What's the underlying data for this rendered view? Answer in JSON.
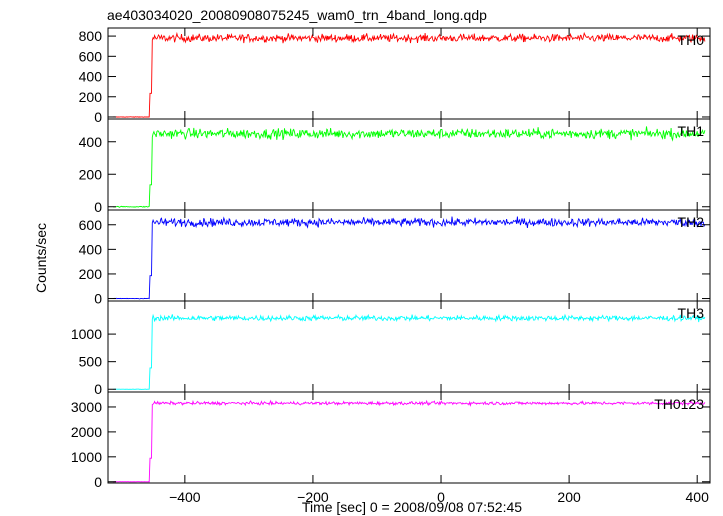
{
  "title": "ae403034020_20080908075245_wam0_trn_4band_long.qdp",
  "chart_data": {
    "type": "line",
    "title": "ae403034020_20080908075245_wam0_trn_4band_long.qdp",
    "xlabel": "Time [sec] 0 = 2008/09/08 07:52:45",
    "ylabel": "Counts/sec",
    "xlim": [
      -520,
      420
    ],
    "xticks": [
      -400,
      -200,
      0,
      200,
      400
    ],
    "xtick_labels": [
      "−400",
      "−200",
      "0",
      "200",
      "400"
    ],
    "step_time": -455,
    "panels": [
      {
        "name": "TH0",
        "color": "#ff0000",
        "ylim": [
          -20,
          880
        ],
        "yticks": [
          0,
          200,
          400,
          600,
          800
        ],
        "pre_level": 0,
        "level": 780,
        "noise": 28
      },
      {
        "name": "TH1",
        "color": "#00ff00",
        "ylim": [
          -20,
          540
        ],
        "yticks": [
          0,
          200,
          400
        ],
        "pre_level": 0,
        "level": 450,
        "noise": 22
      },
      {
        "name": "TH2",
        "color": "#0000ff",
        "ylim": [
          -20,
          720
        ],
        "yticks": [
          0,
          200,
          400,
          600
        ],
        "pre_level": 0,
        "level": 620,
        "noise": 24
      },
      {
        "name": "TH3",
        "color": "#00ffff",
        "ylim": [
          -50,
          1600
        ],
        "yticks": [
          0,
          500,
          1000
        ],
        "pre_level": 0,
        "level": 1290,
        "noise": 35
      },
      {
        "name": "TH0123",
        "color": "#ff00ff",
        "ylim": [
          -50,
          3600
        ],
        "yticks": [
          0,
          1000,
          2000,
          3000
        ],
        "pre_level": 0,
        "level": 3150,
        "noise": 45
      }
    ]
  }
}
